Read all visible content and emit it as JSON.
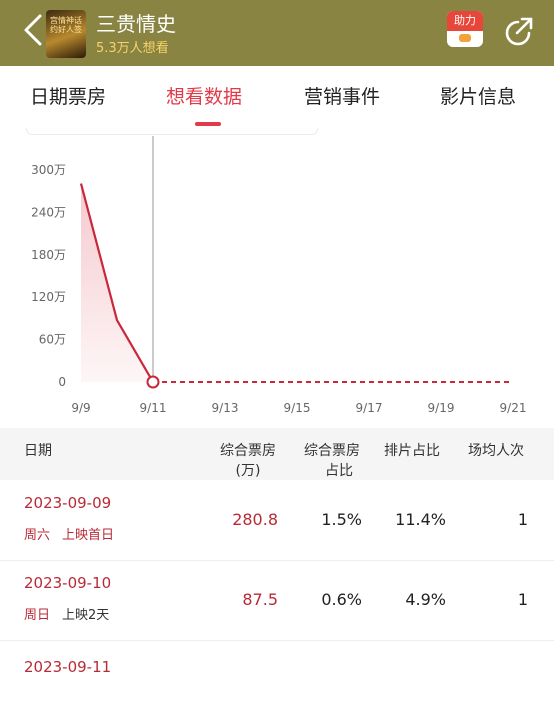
{
  "header": {
    "title": "三贵情史",
    "want_to_see": "5.3万人想看",
    "poster_text": "宫情神话 约好人签",
    "boost_label": "助力"
  },
  "tabs": [
    {
      "label": "日期票房",
      "active": false
    },
    {
      "label": "想看数据",
      "active": true
    },
    {
      "label": "营销事件",
      "active": false
    },
    {
      "label": "影片信息",
      "active": false
    }
  ],
  "chart_data": {
    "type": "area",
    "categories": [
      "9/9",
      "9/10",
      "9/11",
      "9/12",
      "9/13",
      "9/14",
      "9/15",
      "9/16",
      "9/17",
      "9/18",
      "9/19",
      "9/20",
      "9/21"
    ],
    "x_tick_labels": [
      "9/9",
      "9/11",
      "9/13",
      "9/15",
      "9/17",
      "9/19",
      "9/21"
    ],
    "y_tick_labels": [
      "0",
      "60万",
      "120万",
      "180万",
      "240万",
      "300万"
    ],
    "y_ticks": [
      0,
      60,
      120,
      180,
      240,
      300
    ],
    "ylim": [
      0,
      300
    ],
    "series": [
      {
        "values": [
          280.8,
          87.5,
          0,
          0,
          0,
          0,
          0,
          0,
          0,
          0,
          0,
          0,
          0
        ],
        "solid_until_index": 2
      }
    ],
    "highlight_index": 2,
    "colors": {
      "line": "#c8283a",
      "fill": "#f4c3c8",
      "axis_label": "#666"
    }
  },
  "table": {
    "headers": {
      "date": "日期",
      "box_office": [
        "综合票房",
        "(万)"
      ],
      "share": [
        "综合票房",
        "占比"
      ],
      "schedule": "排片占比",
      "avg": "场均人次"
    },
    "rows": [
      {
        "date": "2023-09-09",
        "weekday": "周六",
        "note": "上映首日",
        "box_office": "280.8",
        "share": "1.5%",
        "schedule": "11.4%",
        "avg": "1"
      },
      {
        "date": "2023-09-10",
        "weekday": "周日",
        "note": "上映2天",
        "box_office": "87.5",
        "share": "0.6%",
        "schedule": "4.9%",
        "avg": "1"
      },
      {
        "date": "2023-09-11"
      }
    ]
  }
}
